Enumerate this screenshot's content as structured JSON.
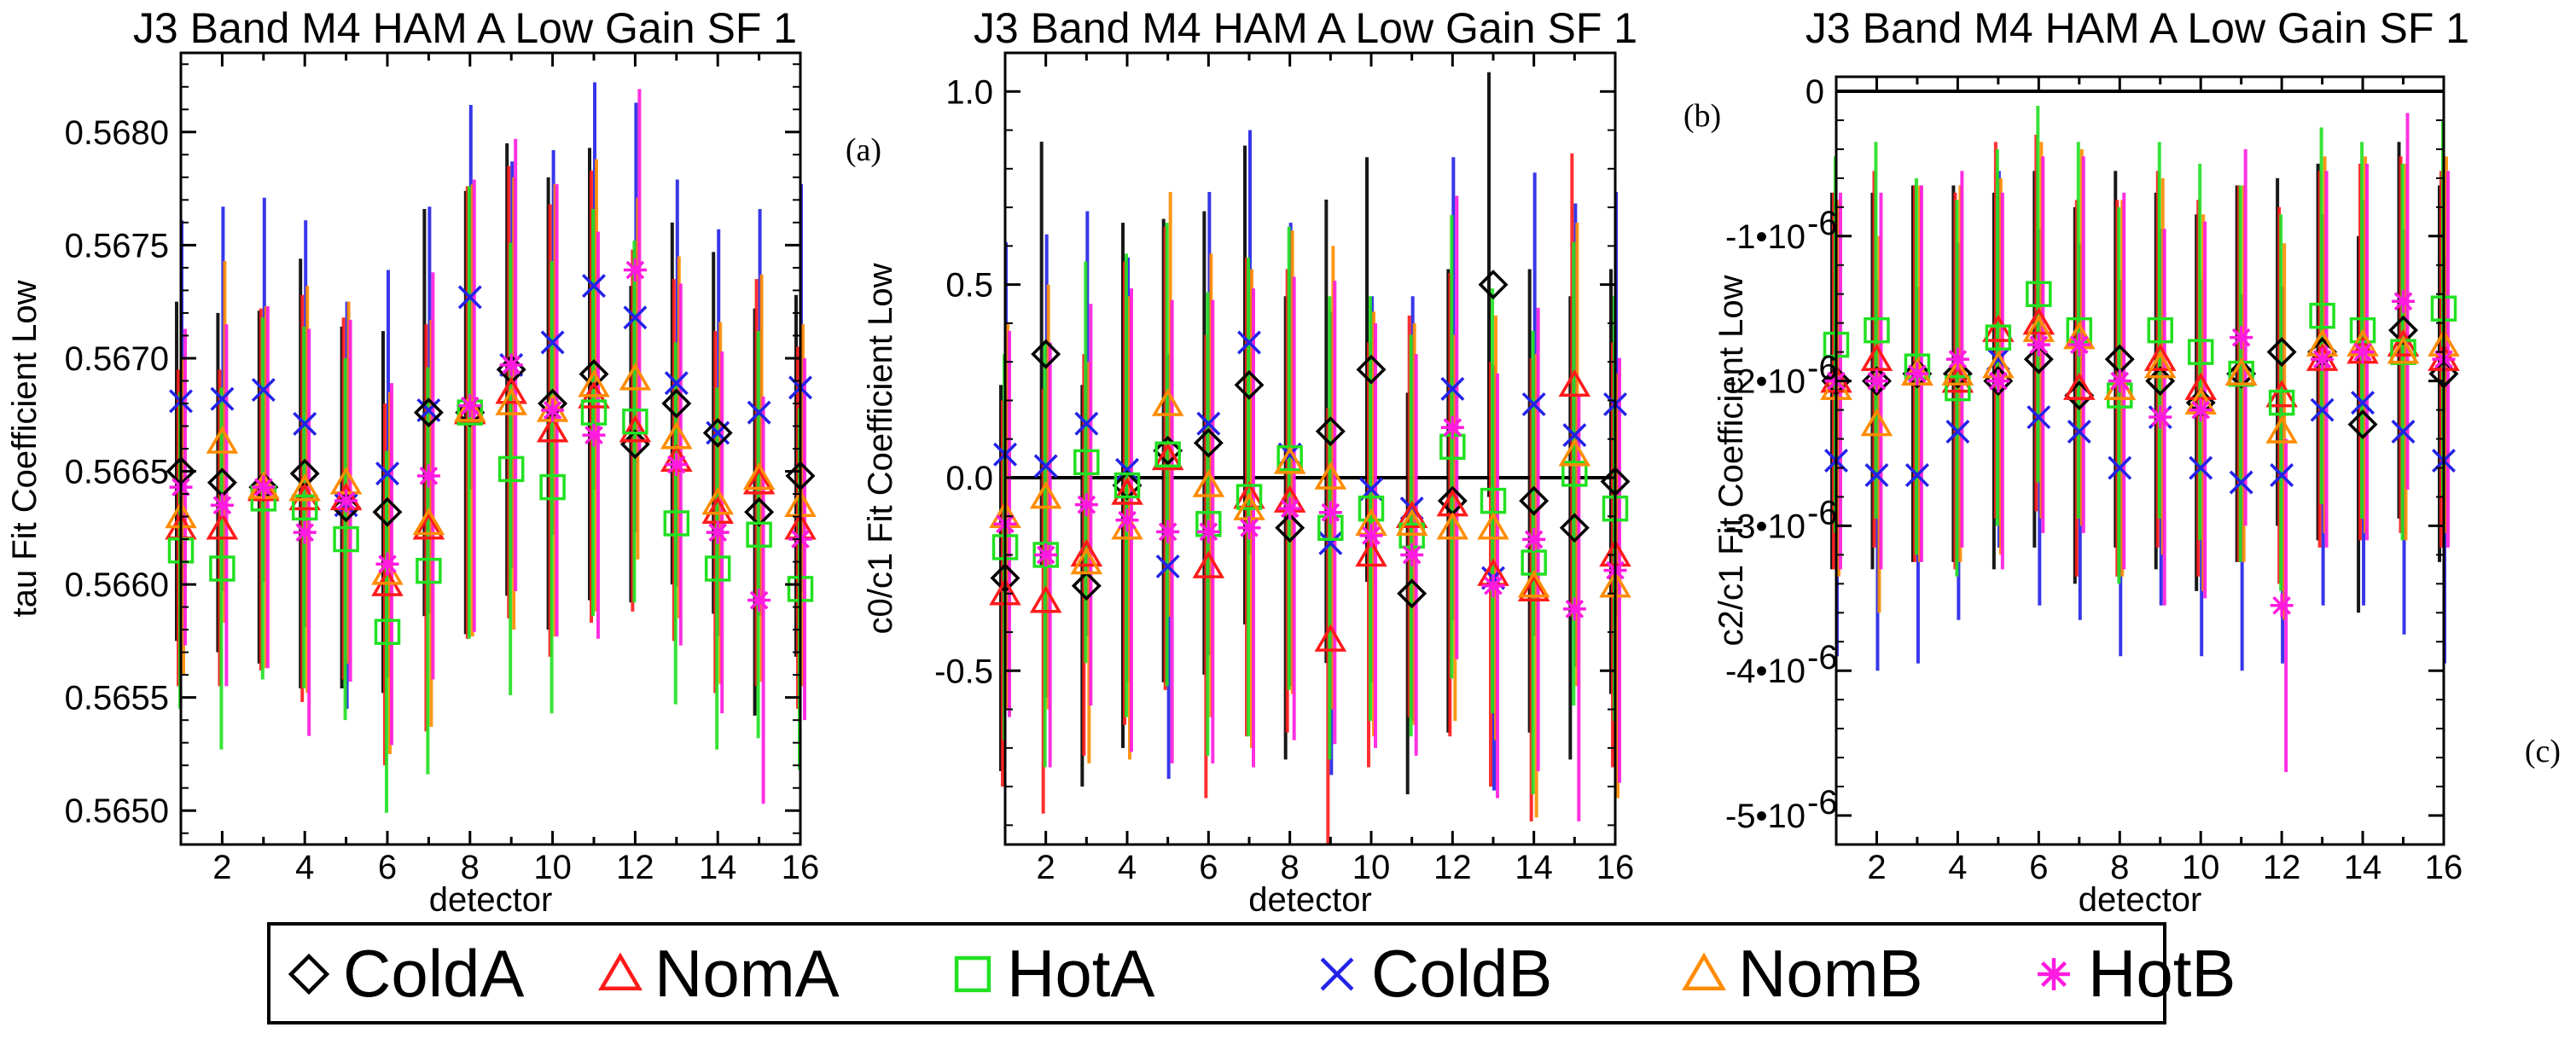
{
  "chart_data": [
    {
      "panel_label": "(a)",
      "type": "scatter",
      "title": "J3 Band M4 HAM A Low Gain SF 1",
      "xlabel": "detector",
      "ylabel": "tau Fit Coefficient Low",
      "xlim": [
        1,
        16
      ],
      "ylim": [
        0.56485,
        0.56835
      ],
      "xticks": [
        2,
        4,
        6,
        8,
        10,
        12,
        14,
        16
      ],
      "yticks": [
        0.565,
        0.5655,
        0.566,
        0.5665,
        0.567,
        0.5675,
        0.568
      ],
      "ytick_labels": [
        "0.5650",
        "0.5655",
        "0.5660",
        "0.5665",
        "0.5670",
        "0.5675",
        "0.5680"
      ],
      "error_bars": true,
      "x": [
        1,
        2,
        3,
        4,
        5,
        6,
        7,
        8,
        9,
        10,
        11,
        12,
        13,
        14,
        15,
        16
      ],
      "series": [
        {
          "name": "ColdA",
          "values": [
            0.5665,
            0.56645,
            0.56643,
            0.56649,
            0.56634,
            0.56632,
            0.56676,
            0.56676,
            0.56695,
            0.5668,
            0.56693,
            0.56662,
            0.5668,
            0.56667,
            0.56632,
            0.56648
          ],
          "err": [
            0.00075,
            0.00075,
            0.00078,
            0.00095,
            0.0008,
            0.0008,
            0.0009,
            0.00098,
            0.001,
            0.001,
            0.001,
            0.0007,
            0.0008,
            0.0008,
            0.0009,
            0.0008
          ]
        },
        {
          "name": "NomA",
          "values": [
            0.56625,
            0.56625,
            0.56642,
            0.56638,
            0.56638,
            0.566,
            0.56625,
            0.56676,
            0.56685,
            0.56668,
            0.56683,
            0.56668,
            0.56655,
            0.56632,
            0.56645,
            0.56625
          ],
          "err": [
            0.0007,
            0.0007,
            0.0008,
            0.0009,
            0.0008,
            0.0008,
            0.0009,
            0.001,
            0.001,
            0.001,
            0.001,
            0.0008,
            0.0008,
            0.0008,
            0.0009,
            0.0008
          ]
        },
        {
          "name": "HotA",
          "values": [
            0.56615,
            0.56607,
            0.56638,
            0.56634,
            0.5662,
            0.56579,
            0.56606,
            0.56676,
            0.56651,
            0.56643,
            0.56676,
            0.56672,
            0.56627,
            0.56607,
            0.56622,
            0.56598
          ],
          "err": [
            0.0007,
            0.0008,
            0.0008,
            0.0008,
            0.0008,
            0.0008,
            0.0009,
            0.001,
            0.001,
            0.001,
            0.0009,
            0.0008,
            0.0008,
            0.0008,
            0.0009,
            0.0008
          ]
        },
        {
          "name": "ColdB",
          "values": [
            0.56681,
            0.56682,
            0.56686,
            0.56671,
            0.56635,
            0.56649,
            0.56677,
            0.56727,
            0.56697,
            0.56707,
            0.56732,
            0.56718,
            0.56689,
            0.56667,
            0.56676,
            0.56687
          ],
          "err": [
            0.0008,
            0.00085,
            0.00085,
            0.0009,
            0.0009,
            0.0009,
            0.0009,
            0.00085,
            0.0009,
            0.00085,
            0.0009,
            0.00095,
            0.0009,
            0.0009,
            0.0009,
            0.0009
          ]
        },
        {
          "name": "NomB",
          "values": [
            0.5663,
            0.56663,
            0.56643,
            0.56642,
            0.56645,
            0.56605,
            0.56627,
            0.56677,
            0.5668,
            0.56677,
            0.56688,
            0.56691,
            0.56665,
            0.56636,
            0.56647,
            0.56635
          ],
          "err": [
            0.0007,
            0.0008,
            0.0008,
            0.0009,
            0.0008,
            0.0008,
            0.0009,
            0.001,
            0.001,
            0.001,
            0.001,
            0.0008,
            0.0008,
            0.0008,
            0.0009,
            0.0008
          ]
        },
        {
          "name": "HotB",
          "values": [
            0.56643,
            0.56635,
            0.56643,
            0.56623,
            0.56637,
            0.56609,
            0.56648,
            0.56679,
            0.56697,
            0.56677,
            0.56666,
            0.56739,
            0.56653,
            0.56623,
            0.56593,
            0.5662
          ],
          "err": [
            0.0007,
            0.0008,
            0.0008,
            0.0009,
            0.0008,
            0.0008,
            0.0009,
            0.001,
            0.001,
            0.001,
            0.0009,
            0.0008,
            0.0008,
            0.0008,
            0.0009,
            0.0008
          ]
        }
      ]
    },
    {
      "panel_label": "(b)",
      "type": "scatter",
      "title": "J3 Band M4 HAM A Low Gain SF 1",
      "xlabel": "detector",
      "ylabel": "c0/c1 Fit Coefficient Low",
      "xlim": [
        1,
        16
      ],
      "ylim": [
        -0.95,
        1.1
      ],
      "xticks": [
        2,
        4,
        6,
        8,
        10,
        12,
        14,
        16
      ],
      "yticks": [
        -0.5,
        0.0,
        0.5,
        1.0
      ],
      "ytick_labels": [
        "-0.5",
        "0.0",
        "0.5",
        "1.0"
      ],
      "reference_line": 0.0,
      "error_bars": true,
      "x": [
        1,
        2,
        3,
        4,
        5,
        6,
        7,
        8,
        9,
        10,
        11,
        12,
        13,
        14,
        15,
        16
      ],
      "series": [
        {
          "name": "ColdA",
          "values": [
            -0.26,
            0.32,
            -0.28,
            -0.02,
            0.07,
            0.09,
            0.24,
            -0.13,
            0.12,
            0.28,
            -0.3,
            -0.06,
            0.5,
            -0.06,
            -0.13,
            -0.01
          ],
          "err": [
            0.5,
            0.55,
            0.52,
            0.68,
            0.6,
            0.6,
            0.62,
            0.6,
            0.6,
            0.55,
            0.52,
            0.6,
            0.55,
            0.6,
            0.6,
            0.55
          ]
        },
        {
          "name": "NomA",
          "values": [
            -0.3,
            -0.32,
            -0.2,
            -0.04,
            0.05,
            -0.23,
            -0.05,
            -0.06,
            -0.42,
            -0.2,
            -0.1,
            -0.07,
            -0.25,
            -0.29,
            0.24,
            -0.2
          ],
          "err": [
            0.5,
            0.55,
            0.52,
            0.6,
            0.6,
            0.6,
            0.62,
            0.6,
            0.6,
            0.55,
            0.52,
            0.6,
            0.55,
            0.6,
            0.6,
            0.55
          ]
        },
        {
          "name": "HotA",
          "values": [
            -0.18,
            -0.2,
            0.04,
            -0.02,
            0.06,
            -0.12,
            -0.05,
            0.05,
            -0.13,
            -0.08,
            -0.15,
            0.08,
            -0.06,
            -0.22,
            0.01,
            -0.08
          ],
          "err": [
            0.5,
            0.55,
            0.52,
            0.6,
            0.6,
            0.6,
            0.62,
            0.6,
            0.6,
            0.55,
            0.52,
            0.6,
            0.55,
            0.6,
            0.6,
            0.55
          ]
        },
        {
          "name": "ColdB",
          "values": [
            0.06,
            0.03,
            0.14,
            0.02,
            -0.23,
            0.14,
            0.35,
            0.06,
            -0.17,
            -0.03,
            -0.08,
            0.23,
            -0.26,
            0.19,
            0.11,
            0.19
          ],
          "err": [
            0.55,
            0.6,
            0.55,
            0.55,
            0.55,
            0.6,
            0.55,
            0.6,
            0.6,
            0.5,
            0.55,
            0.6,
            0.55,
            0.6,
            0.6,
            0.55
          ]
        },
        {
          "name": "NomB",
          "values": [
            -0.1,
            -0.05,
            -0.22,
            -0.13,
            0.19,
            -0.02,
            -0.08,
            0.04,
            0.0,
            -0.12,
            -0.12,
            -0.13,
            -0.13,
            -0.28,
            0.06,
            -0.28
          ],
          "err": [
            0.5,
            0.55,
            0.52,
            0.6,
            0.55,
            0.6,
            0.62,
            0.6,
            0.6,
            0.55,
            0.52,
            0.5,
            0.55,
            0.6,
            0.6,
            0.55
          ]
        },
        {
          "name": "HotB",
          "values": [
            -0.12,
            -0.2,
            -0.07,
            -0.11,
            -0.14,
            -0.14,
            -0.13,
            -0.08,
            -0.09,
            -0.15,
            -0.2,
            0.13,
            -0.28,
            -0.16,
            -0.34,
            -0.24
          ],
          "err": [
            0.5,
            0.55,
            0.52,
            0.6,
            0.6,
            0.6,
            0.62,
            0.6,
            0.6,
            0.55,
            0.52,
            0.6,
            0.55,
            0.6,
            0.55,
            0.55
          ]
        }
      ]
    },
    {
      "panel_label": "(c)",
      "type": "scatter",
      "title": "J3 Band M4 HAM A Low Gain SF 1",
      "xlabel": "detector",
      "ylabel": "c2/c1 Fit Coefficient Low",
      "xlim": [
        1,
        16
      ],
      "ylim": [
        -5.2e-06,
        1e-07
      ],
      "xticks": [
        2,
        4,
        6,
        8,
        10,
        12,
        14,
        16
      ],
      "yticks": [
        0,
        -1e-06,
        -2e-06,
        -3e-06,
        -4e-06,
        -5e-06
      ],
      "ytick_labels": [
        "0",
        "-1•10",
        "-2•10",
        "-3•10",
        "-4•10",
        "-5•10"
      ],
      "ytick_exponent": "-6",
      "reference_line": 0,
      "error_bars": true,
      "x": [
        1,
        2,
        3,
        4,
        5,
        6,
        7,
        8,
        9,
        10,
        11,
        12,
        13,
        14,
        15,
        16
      ],
      "series": [
        {
          "name": "ColdA",
          "values": [
            -2e-06,
            -2e-06,
            -1.95e-06,
            -1.95e-06,
            -2e-06,
            -1.85e-06,
            -2.1e-06,
            -1.85e-06,
            -2e-06,
            -2.15e-06,
            -1.95e-06,
            -1.8e-06,
            -1.8e-06,
            -2.3e-06,
            -1.65e-06,
            -1.95e-06
          ],
          "err": [
            1.3e-06,
            1.3e-06,
            1.3e-06,
            1.3e-06,
            1.3e-06,
            1.3e-06,
            1.3e-06,
            1.3e-06,
            1.3e-06,
            1.3e-06,
            1.3e-06,
            1.2e-06,
            1.3e-06,
            1.3e-06,
            1.3e-06,
            1.3e-06
          ]
        },
        {
          "name": "NomA",
          "values": [
            -2e-06,
            -1.85e-06,
            -1.95e-06,
            -2e-06,
            -1.65e-06,
            -1.6e-06,
            -2.05e-06,
            -2.05e-06,
            -1.85e-06,
            -2.05e-06,
            -1.95e-06,
            -2.1e-06,
            -1.85e-06,
            -1.8e-06,
            -1.75e-06,
            -1.85e-06
          ],
          "err": [
            1.3e-06,
            1.3e-06,
            1.3e-06,
            1.3e-06,
            1.3e-06,
            1.3e-06,
            1.3e-06,
            1.3e-06,
            1.3e-06,
            1.3e-06,
            1.3e-06,
            1.3e-06,
            1.3e-06,
            1.3e-06,
            1.3e-06,
            1.3e-06
          ]
        },
        {
          "name": "HotA",
          "values": [
            -1.75e-06,
            -1.65e-06,
            -1.9e-06,
            -2.05e-06,
            -1.7e-06,
            -1.4e-06,
            -1.65e-06,
            -2.1e-06,
            -1.65e-06,
            -1.8e-06,
            -1.95e-06,
            -2.15e-06,
            -1.55e-06,
            -1.65e-06,
            -1.8e-06,
            -1.5e-06
          ],
          "err": [
            1.3e-06,
            1.3e-06,
            1.3e-06,
            1.3e-06,
            1.3e-06,
            1.3e-06,
            1.3e-06,
            1.3e-06,
            1.3e-06,
            1.3e-06,
            1.3e-06,
            1.3e-06,
            1.3e-06,
            1.3e-06,
            1.3e-06,
            1.3e-06
          ]
        },
        {
          "name": "ColdB",
          "values": [
            -2.55e-06,
            -2.65e-06,
            -2.65e-06,
            -2.35e-06,
            -1.85e-06,
            -2.25e-06,
            -2.35e-06,
            -2.6e-06,
            -2.25e-06,
            -2.6e-06,
            -2.7e-06,
            -2.65e-06,
            -2.2e-06,
            -2.15e-06,
            -2.35e-06,
            -2.55e-06
          ],
          "err": [
            1.35e-06,
            1.35e-06,
            1.3e-06,
            1.3e-06,
            1.3e-06,
            1.3e-06,
            1.3e-06,
            1.3e-06,
            1.3e-06,
            1.3e-06,
            1.3e-06,
            1.3e-06,
            1.35e-06,
            1.4e-06,
            1.4e-06,
            1.4e-06
          ]
        },
        {
          "name": "NomB",
          "values": [
            -2.05e-06,
            -2.3e-06,
            -1.95e-06,
            -1.95e-06,
            -1.9e-06,
            -1.65e-06,
            -1.7e-06,
            -2.05e-06,
            -1.9e-06,
            -2.15e-06,
            -1.95e-06,
            -2.35e-06,
            -1.75e-06,
            -1.75e-06,
            -1.8e-06,
            -1.75e-06
          ],
          "err": [
            1.3e-06,
            1.3e-06,
            1.3e-06,
            1.3e-06,
            1.3e-06,
            1.3e-06,
            1.3e-06,
            1.3e-06,
            1.3e-06,
            1.3e-06,
            1.3e-06,
            1.3e-06,
            1.3e-06,
            1.3e-06,
            1.3e-06,
            1.3e-06
          ]
        },
        {
          "name": "HotB",
          "values": [
            -2e-06,
            -2e-06,
            -1.95e-06,
            -1.85e-06,
            -2e-06,
            -1.75e-06,
            -1.75e-06,
            -2e-06,
            -2.25e-06,
            -2.2e-06,
            -1.7e-06,
            -3.55e-06,
            -1.85e-06,
            -1.8e-06,
            -1.45e-06,
            -1.85e-06
          ],
          "err": [
            1.3e-06,
            1.3e-06,
            1.3e-06,
            1.3e-06,
            1.3e-06,
            1.3e-06,
            1.3e-06,
            1.3e-06,
            1.3e-06,
            1.3e-06,
            1.3e-06,
            1.15e-06,
            1.3e-06,
            1.3e-06,
            1.3e-06,
            1.3e-06
          ]
        }
      ]
    }
  ],
  "legend": {
    "placement": "bottom",
    "items": [
      {
        "name": "ColdA",
        "symbol": "diamond",
        "color": "#000000"
      },
      {
        "name": "NomA",
        "symbol": "triangle",
        "color": "#ff1a1a"
      },
      {
        "name": "HotA",
        "symbol": "square",
        "color": "#22e022"
      },
      {
        "name": "ColdB",
        "symbol": "x",
        "color": "#2222e8"
      },
      {
        "name": "NomB",
        "symbol": "triangle",
        "color": "#ff8c00"
      },
      {
        "name": "HotB",
        "symbol": "asterisk",
        "color": "#ff1adf"
      }
    ]
  }
}
